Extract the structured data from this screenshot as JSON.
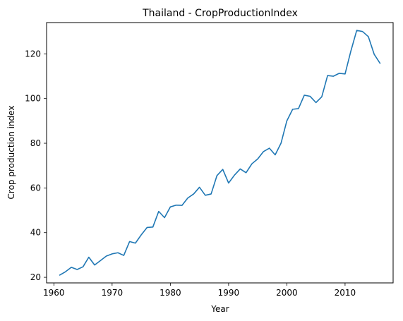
{
  "chart_data": {
    "type": "line",
    "title": "Thailand - CropProductionIndex",
    "xlabel": "Year",
    "ylabel": "Crop production index",
    "xlim": [
      1958.75,
      2018.25
    ],
    "ylim": [
      17.5,
      134
    ],
    "xticks": [
      1960,
      1970,
      1980,
      1990,
      2000,
      2010
    ],
    "yticks": [
      20,
      40,
      60,
      80,
      100,
      120
    ],
    "grid": false,
    "series": [
      {
        "color": "#1f77b4",
        "x": [
          1961,
          1962,
          1963,
          1964,
          1965,
          1966,
          1967,
          1968,
          1969,
          1970,
          1971,
          1972,
          1973,
          1974,
          1975,
          1976,
          1977,
          1978,
          1979,
          1980,
          1981,
          1982,
          1983,
          1984,
          1985,
          1986,
          1987,
          1988,
          1989,
          1990,
          1991,
          1992,
          1993,
          1994,
          1995,
          1996,
          1997,
          1998,
          1999,
          2000,
          2001,
          2002,
          2003,
          2004,
          2005,
          2006,
          2007,
          2008,
          2009,
          2010,
          2011,
          2012,
          2013,
          2014,
          2015,
          2016
        ],
        "y": [
          21.0,
          22.5,
          24.5,
          23.5,
          24.7,
          29.0,
          25.5,
          27.5,
          29.5,
          30.5,
          31.0,
          29.8,
          36.0,
          35.3,
          39.0,
          42.3,
          42.5,
          49.5,
          46.7,
          51.5,
          52.3,
          52.2,
          55.5,
          57.3,
          60.3,
          56.7,
          57.3,
          65.5,
          68.3,
          62.2,
          65.7,
          68.5,
          66.8,
          70.8,
          73.0,
          76.3,
          77.8,
          74.8,
          80.0,
          90.0,
          95.2,
          95.5,
          101.5,
          101.0,
          98.2,
          100.8,
          110.3,
          110.0,
          111.3,
          111.0,
          121.3,
          130.5,
          130.0,
          127.7,
          119.8,
          115.8
        ]
      }
    ]
  }
}
